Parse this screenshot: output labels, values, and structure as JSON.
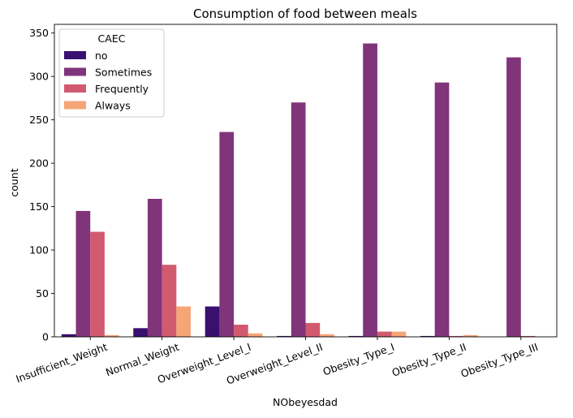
{
  "chart_data": {
    "type": "bar",
    "title": "Consumption of food between meals",
    "xlabel": "NObeyesdad",
    "ylabel": "count",
    "ylim": [
      0,
      360
    ],
    "yticks": [
      0,
      50,
      100,
      150,
      200,
      250,
      300,
      350
    ],
    "categories": [
      "Insufficient_Weight",
      "Normal_Weight",
      "Overweight_Level_I",
      "Overweight_Level_II",
      "Obesity_Type_I",
      "Obesity_Type_II",
      "Obesity_Type_III"
    ],
    "legend": {
      "title": "CAEC",
      "placement": "top-left"
    },
    "grid": false,
    "series": [
      {
        "name": "no",
        "color": "#3b0f70",
        "values": [
          3,
          10,
          35,
          1,
          1,
          1,
          0
        ]
      },
      {
        "name": "Sometimes",
        "color": "#80347a",
        "values": [
          145,
          159,
          236,
          270,
          338,
          293,
          322
        ]
      },
      {
        "name": "Frequently",
        "color": "#d25a6f",
        "values": [
          121,
          83,
          14,
          16,
          6,
          1,
          1
        ]
      },
      {
        "name": "Always",
        "color": "#f6a577",
        "values": [
          2,
          35,
          4,
          3,
          6,
          2,
          0
        ]
      }
    ]
  }
}
